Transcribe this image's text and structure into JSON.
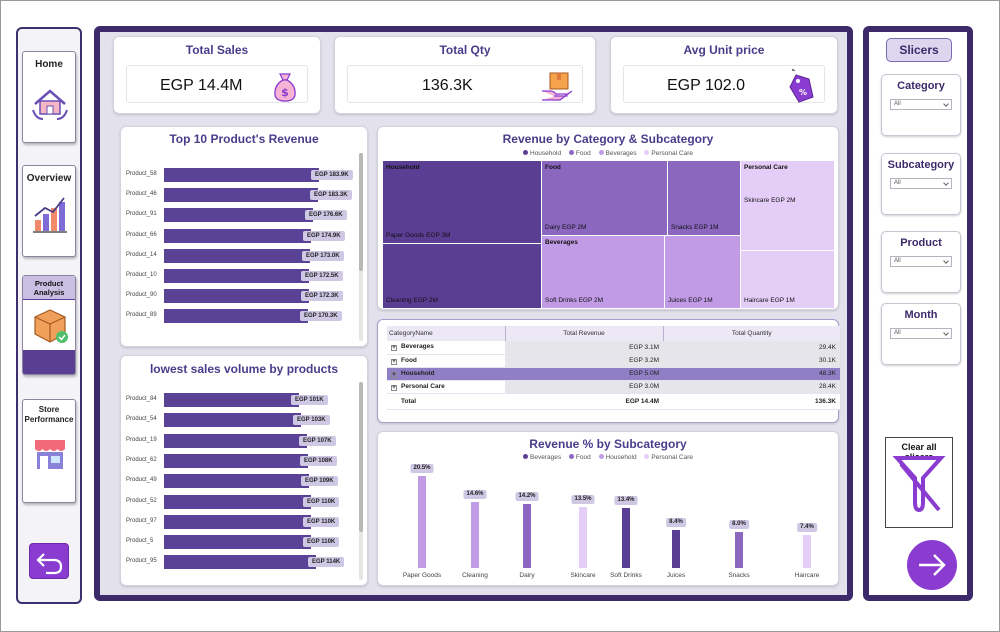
{
  "nav": {
    "home": "Home",
    "overview": "Overview",
    "product_analysis_1": "Product",
    "product_analysis_2": "Analysis",
    "store_performance_1": "Store",
    "store_performance_2": "Performance"
  },
  "kpis": {
    "total_sales": {
      "title": "Total Sales",
      "value": "EGP 14.4M"
    },
    "total_qty": {
      "title": "Total Qty",
      "value": "136.3K"
    },
    "avg_price": {
      "title": "Avg Unit price",
      "value": "EGP 102.0"
    }
  },
  "top10": {
    "title": "Top 10 Product's Revenue",
    "rows": [
      {
        "name": "Product_58",
        "label": "EGP 183.9K",
        "value": 183.9
      },
      {
        "name": "Product_46",
        "label": "EGP 183.3K",
        "value": 183.3
      },
      {
        "name": "Product_91",
        "label": "EGP 176.6K",
        "value": 176.6
      },
      {
        "name": "Product_66",
        "label": "EGP 174.9K",
        "value": 174.9
      },
      {
        "name": "Product_14",
        "label": "EGP 173.0K",
        "value": 173.0
      },
      {
        "name": "Product_10",
        "label": "EGP 172.5K",
        "value": 172.5
      },
      {
        "name": "Product_90",
        "label": "EGP 172.3K",
        "value": 172.3
      },
      {
        "name": "Product_89",
        "label": "EGP 170.3K",
        "value": 170.3
      }
    ]
  },
  "lowest": {
    "title": "lowest sales volume by products",
    "rows": [
      {
        "name": "Product_84",
        "label": "EGP 101K",
        "value": 101
      },
      {
        "name": "Product_54",
        "label": "EGP 103K",
        "value": 103
      },
      {
        "name": "Product_19",
        "label": "EGP 107K",
        "value": 107
      },
      {
        "name": "Product_62",
        "label": "EGP 108K",
        "value": 108
      },
      {
        "name": "Product_49",
        "label": "EGP 109K",
        "value": 109
      },
      {
        "name": "Product_52",
        "label": "EGP 110K",
        "value": 110
      },
      {
        "name": "Product_97",
        "label": "EGP 110K",
        "value": 110
      },
      {
        "name": "Product_5",
        "label": "EGP 110K",
        "value": 110
      },
      {
        "name": "Product_95",
        "label": "EGP 114K",
        "value": 114
      }
    ]
  },
  "treemap": {
    "title": "Revenue by Category & Subcategory",
    "legend": [
      "Household",
      "Food",
      "Beverages",
      "Personal Care"
    ],
    "household": "Household",
    "paper_goods": "Paper Goods EGP 3M",
    "cleaning": "Cleaning EGP 2M",
    "food": "Food",
    "dairy": "Dairy EGP 2M",
    "snacks": "Snacks EGP 1M",
    "beverages": "Beverages",
    "soft_drinks": "Soft Drinks EGP 2M",
    "juices": "Juices EGP 1M",
    "personal_care": "Personal Care",
    "skincare": "Skincare EGP 2M",
    "haircare": "Haircare EGP 1M"
  },
  "table": {
    "headers": [
      "CategoryName",
      "Total Revenue",
      "Total Quantity"
    ],
    "rows": [
      {
        "cat": "Beverages",
        "rev": "EGP 3.1M",
        "qty": "29.4K"
      },
      {
        "cat": "Food",
        "rev": "EGP 3.2M",
        "qty": "30.1K"
      },
      {
        "cat": "Household",
        "rev": "EGP 5.0M",
        "qty": "48.3K"
      },
      {
        "cat": "Personal Care",
        "rev": "EGP 3.0M",
        "qty": "28.4K"
      }
    ],
    "total": {
      "cat": "Total",
      "rev": "EGP 14.4M",
      "qty": "136.3K"
    }
  },
  "chart_data": {
    "type": "bar",
    "title": "Revenue % by Subcategory",
    "legend": [
      "Beverages",
      "Food",
      "Household",
      "Personal Care"
    ],
    "categories": [
      "Paper Goods",
      "Cleaning",
      "Dairy",
      "Skincare",
      "Soft Drinks",
      "Juices",
      "Snacks",
      "Haircare"
    ],
    "values": [
      20.5,
      14.6,
      14.2,
      13.5,
      13.4,
      8.4,
      8.0,
      7.4
    ],
    "labels": [
      "20.5%",
      "14.6%",
      "14.2%",
      "13.5%",
      "13.4%",
      "8.4%",
      "8.0%",
      "7.4%"
    ],
    "groups": [
      "Household",
      "Household",
      "Food",
      "Personal Care",
      "Beverages",
      "Beverages",
      "Food",
      "Personal Care"
    ],
    "colors": {
      "Beverages": "#5a3e94",
      "Food": "#8b67c0",
      "Household": "#c29be6",
      "Personal Care": "#e4cdf7"
    }
  },
  "slicers": {
    "title": "Slicers",
    "category": {
      "label": "Category",
      "value": "All"
    },
    "subcategory": {
      "label": "Subcategory",
      "value": "All"
    },
    "product": {
      "label": "Product",
      "value": "All"
    },
    "month": {
      "label": "Month",
      "value": "All"
    },
    "clear": "Clear all slicers"
  },
  "colors": {
    "accent": "#3d2a6b",
    "bar": "#5a4396",
    "button": "#8a3bd0"
  }
}
